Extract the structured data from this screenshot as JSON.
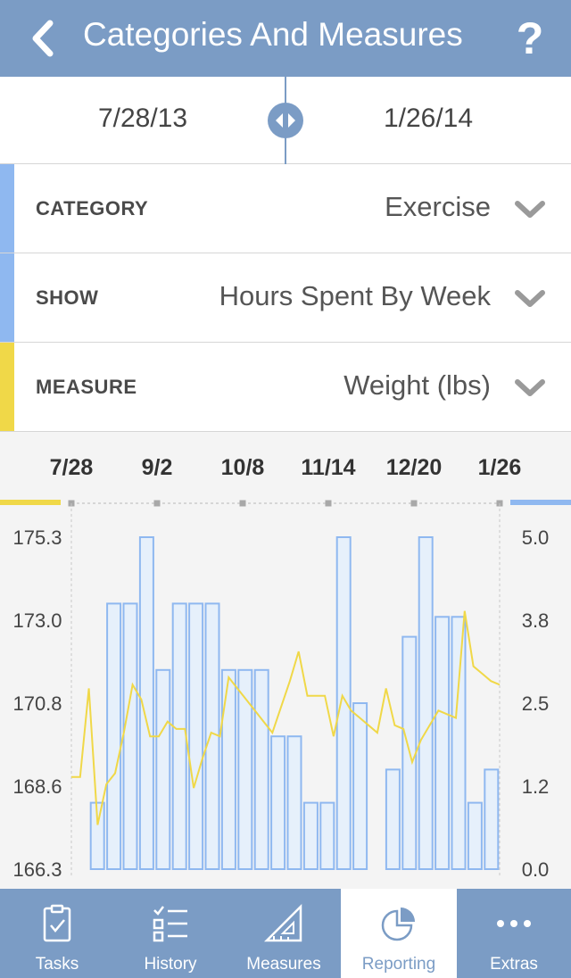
{
  "header": {
    "title": "Categories And Measures",
    "help_label": "?"
  },
  "date_range": {
    "start": "7/28/13",
    "end": "1/26/14"
  },
  "selectors": [
    {
      "label": "CATEGORY",
      "value": "Exercise",
      "stripe_color": "#8fb8f0"
    },
    {
      "label": "SHOW",
      "value": "Hours Spent By Week",
      "stripe_color": "#8fb8f0"
    },
    {
      "label": "MEASURE",
      "value": "Weight (lbs)",
      "stripe_color": "#f0d848"
    }
  ],
  "colors": {
    "accent": "#7b9cc5",
    "bar_stroke": "#8fb8f0",
    "bar_fill": "#e6f0fb",
    "line": "#f0d848"
  },
  "chart_data": {
    "type": "bar",
    "x_tick_labels": [
      "7/28",
      "9/2",
      "10/8",
      "11/14",
      "12/20",
      "1/26"
    ],
    "left_axis": {
      "ticks": [
        "175.3",
        "173.0",
        "170.8",
        "168.6",
        "166.3"
      ],
      "range": [
        166.3,
        175.3
      ]
    },
    "right_axis": {
      "ticks": [
        "5.0",
        "3.8",
        "2.5",
        "1.2",
        "0.0"
      ],
      "range": [
        0.0,
        5.0
      ]
    },
    "bar_values": [
      1.0,
      4.0,
      4.0,
      5.0,
      3.0,
      4.0,
      4.0,
      4.0,
      3.0,
      3.0,
      3.0,
      2.0,
      2.0,
      1.0,
      1.0,
      5.0,
      2.5,
      0,
      1.5,
      3.5,
      5.0,
      3.8,
      3.8,
      1.0,
      1.5
    ],
    "line_values": [
      168.8,
      168.8,
      171.2,
      167.5,
      168.6,
      168.9,
      170.0,
      171.3,
      170.9,
      169.9,
      169.9,
      170.3,
      170.1,
      170.1,
      168.5,
      169.3,
      170.0,
      169.9,
      171.5,
      171.2,
      170.9,
      170.6,
      170.3,
      170.0,
      170.7,
      171.4,
      172.2,
      171.0,
      171.0,
      171.0,
      169.9,
      171.0,
      170.6,
      170.4,
      170.2,
      170.0,
      171.2,
      170.2,
      170.1,
      169.2,
      169.8,
      170.2,
      170.6,
      170.5,
      170.4,
      173.3,
      171.8,
      171.6,
      171.4,
      171.3
    ]
  },
  "tabs": [
    {
      "label": "Tasks",
      "icon": "clipboard-icon",
      "active": false
    },
    {
      "label": "History",
      "icon": "checklist-icon",
      "active": false
    },
    {
      "label": "Measures",
      "icon": "triangle-ruler-icon",
      "active": false
    },
    {
      "label": "Reporting",
      "icon": "pie-chart-icon",
      "active": true
    },
    {
      "label": "Extras",
      "icon": "more-dots-icon",
      "active": false
    }
  ]
}
